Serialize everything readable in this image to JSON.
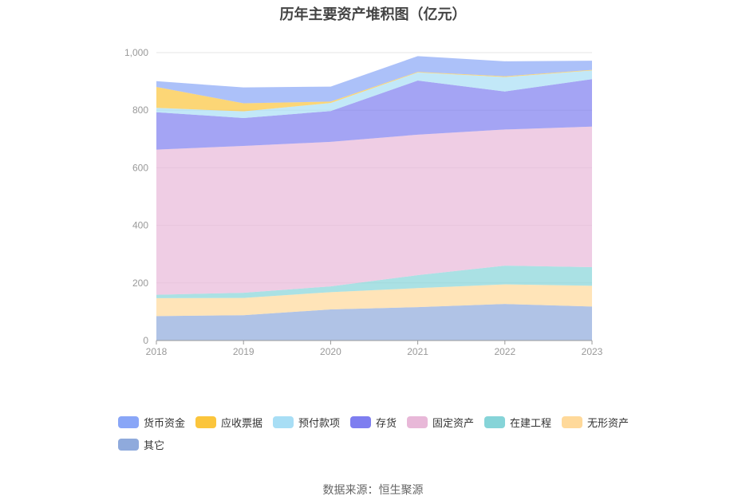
{
  "source_text": "数据来源：恒生聚源",
  "chart_data": {
    "type": "area",
    "stacked": true,
    "title": "历年主要资产堆积图（亿元）",
    "x": [
      "2018",
      "2019",
      "2020",
      "2021",
      "2022",
      "2023"
    ],
    "y_ticks": [
      "0",
      "200",
      "400",
      "600",
      "800",
      "1,000"
    ],
    "ylim": [
      0,
      1000
    ],
    "grid": true,
    "legend_position": "bottom",
    "series": [
      {
        "name": "其它",
        "color": "#8FAADC",
        "values": [
          85,
          88,
          108,
          116,
          127,
          118
        ]
      },
      {
        "name": "无形资产",
        "color": "#FFD99A",
        "values": [
          62,
          60,
          60,
          66,
          68,
          72
        ]
      },
      {
        "name": "在建工程",
        "color": "#86D4D8",
        "values": [
          12,
          18,
          20,
          45,
          65,
          65
        ]
      },
      {
        "name": "固定资产",
        "color": "#E8B8D8",
        "values": [
          504,
          510,
          502,
          488,
          473,
          488
        ]
      },
      {
        "name": "存货",
        "color": "#7E7EF0",
        "values": [
          130,
          97,
          107,
          188,
          132,
          165
        ]
      },
      {
        "name": "预付款项",
        "color": "#A8DEF5",
        "values": [
          15,
          23,
          28,
          28,
          50,
          30
        ]
      },
      {
        "name": "应收票据",
        "color": "#FBC53C",
        "values": [
          73,
          28,
          5,
          2,
          3,
          2
        ]
      },
      {
        "name": "货币资金",
        "color": "#89A6F7",
        "values": [
          20,
          55,
          52,
          55,
          52,
          32
        ]
      }
    ],
    "legend_order": [
      "货币资金",
      "应收票据",
      "预付款项",
      "存货",
      "固定资产",
      "在建工程",
      "无形资产",
      "其它"
    ]
  }
}
